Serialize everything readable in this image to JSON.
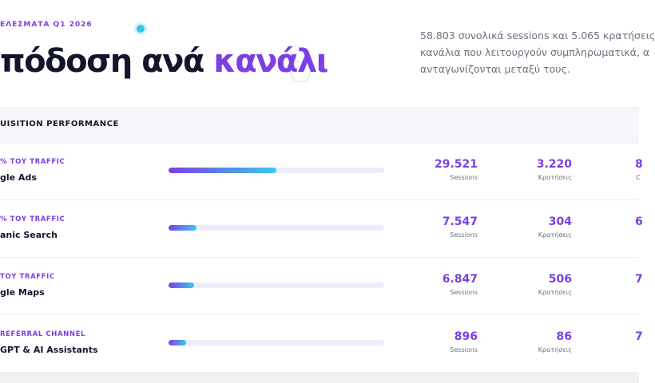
{
  "header": {
    "eyebrow": "ΕΛΕΣΜΑΤΑ Q1 2026",
    "title": "πόδοση ανά ",
    "title_accent": "κανάλι",
    "description": [
      "58.803 συνολικά sessions και 5.065 κρατήσεις",
      "κανάλια που λειτουργούν συμπληρωματικά, α",
      "ανταγωνίζονται μεταξύ τους."
    ]
  },
  "table": {
    "heading": "UISITION PERFORMANCE",
    "progress_max": 100,
    "rows": [
      {
        "tag": "% ΤΟΥ TRAFFIC",
        "name": "gle Ads",
        "progress": 50,
        "sessions": "29.521",
        "sessions_label": "Sessions",
        "bookings": "3.220",
        "bookings_label": "Κρατήσεις",
        "third": "8",
        "third_label": "C"
      },
      {
        "tag": "% ΤΟΥ TRAFFIC",
        "name": "anic Search",
        "progress": 13,
        "sessions": "7.547",
        "sessions_label": "Sessions",
        "bookings": "304",
        "bookings_label": "Κρατήσεις",
        "third": "6"
      },
      {
        "tag": "ΤΟΥ TRAFFIC",
        "name": "gle Maps",
        "progress": 12,
        "sessions": "6.847",
        "sessions_label": "Sessions",
        "bookings": "506",
        "bookings_label": "Κρατήσεις",
        "third": "7"
      },
      {
        "tag": "REFERRAL CHANNEL",
        "name": "GPT & AI Assistants",
        "progress": 8,
        "sessions": "896",
        "sessions_label": "Sessions",
        "bookings": "86",
        "bookings_label": "Κρατήσεις",
        "third": "7"
      }
    ]
  }
}
